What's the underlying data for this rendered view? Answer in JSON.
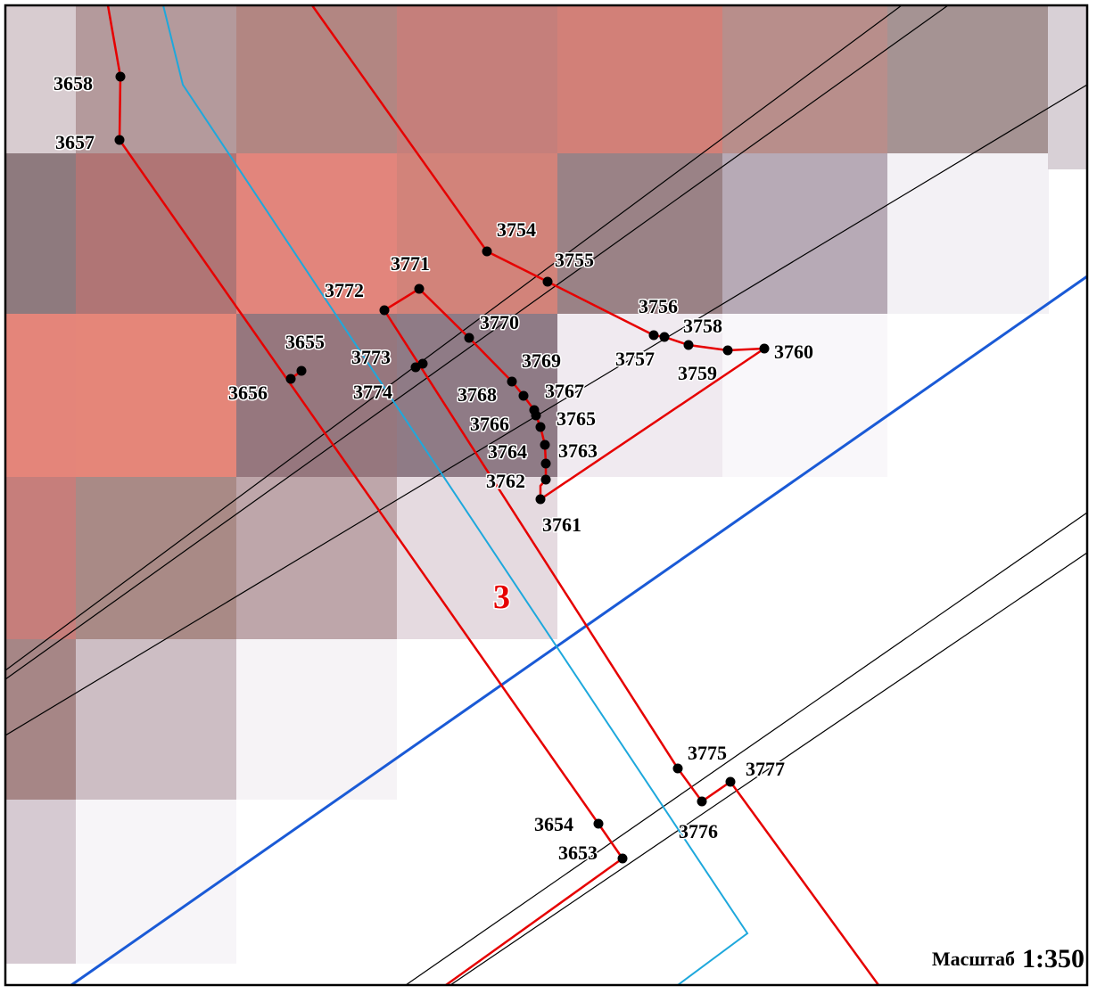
{
  "parcel_label": "3",
  "scale": {
    "label": "Масштаб",
    "value": "1:350"
  },
  "colors": {
    "boundary": "#e60000",
    "blue_line": "#1a5ad6",
    "cyan_line": "#1ea8dc",
    "thin_line": "#000000",
    "frame": "#000000"
  },
  "points": [
    "3658",
    "3657",
    "3754",
    "3755",
    "3771",
    "3772",
    "3770",
    "3756",
    "3758",
    "3760",
    "3757",
    "3759",
    "3655",
    "3656",
    "3773",
    "3774",
    "3769",
    "3768",
    "3767",
    "3766",
    "3765",
    "3764",
    "3763",
    "3762",
    "3761",
    "3775",
    "3777",
    "3776",
    "3654",
    "3653"
  ]
}
